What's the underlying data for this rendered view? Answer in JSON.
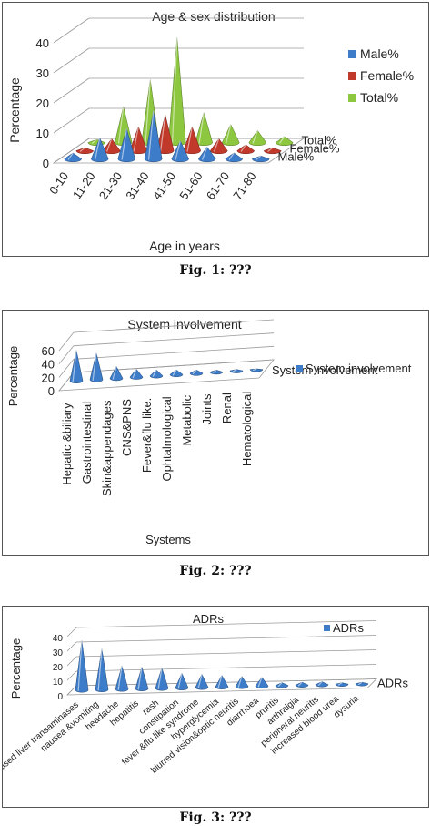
{
  "captions": [
    "Fig. 1: ???",
    "Fig. 2: ???",
    "Fig. 3: ???"
  ],
  "chart_data": [
    {
      "type": "bar",
      "style": "3d-cone",
      "title": "Age & sex distribution",
      "xlabel": "Age in years",
      "ylabel": "Percentage",
      "ylim": [
        0,
        40
      ],
      "yticks": [
        "0",
        "10",
        "20",
        "30",
        "40"
      ],
      "grid": true,
      "legend_position": "right",
      "categories": [
        "0-10",
        "11-20",
        "21-30",
        "31-40",
        "41-50",
        "51-60",
        "61-70",
        "71-80"
      ],
      "depth_labels": [
        "Total%",
        "Female%",
        "Male%"
      ],
      "series": [
        {
          "name": "Male%",
          "color": "#3d7cc9",
          "values": [
            2,
            7,
            10,
            16,
            6,
            4,
            2,
            1
          ]
        },
        {
          "name": "Female%",
          "color": "#c0392b",
          "values": [
            1,
            4,
            8,
            12,
            8,
            4,
            2,
            1
          ]
        },
        {
          "name": "Total%",
          "color": "#8dc63f",
          "values": [
            1,
            12,
            21,
            35,
            10,
            6,
            4,
            2
          ]
        }
      ]
    },
    {
      "type": "bar",
      "style": "3d-cone",
      "title": "System involvement",
      "xlabel": "Systems",
      "ylabel": "Percentage",
      "ylim": [
        0,
        60
      ],
      "yticks": [
        "0",
        "20",
        "40",
        "60"
      ],
      "grid": true,
      "legend_position": "right",
      "depth_labels": [
        "System involvement"
      ],
      "categories": [
        "Hepatic &biliary",
        "Gastrointestinal",
        "Skin&appendages",
        "CNS&PNS",
        "Fever&flu like.",
        "Ophtalmological",
        "Metabolic",
        "Joints",
        "Renal",
        "Hematological"
      ],
      "series": [
        {
          "name": "System involvement",
          "color": "#3d7cc9",
          "values": [
            46,
            40,
            18,
            12,
            9,
            7,
            5,
            3,
            2,
            1
          ]
        }
      ]
    },
    {
      "type": "bar",
      "style": "3d-cone",
      "title": "ADRs",
      "xlabel": "",
      "ylabel": "Percentage",
      "ylim": [
        0,
        40
      ],
      "yticks": [
        "0",
        "10",
        "20",
        "30",
        "40"
      ],
      "grid": true,
      "legend_position": "top-right",
      "depth_labels": [
        "ADRs"
      ],
      "categories": [
        "raised liver transaminases",
        "nausea &vomiting",
        "headache",
        "hepatitis",
        "rash",
        "constipation",
        "fever &flu like syndrome",
        "hyperglycemia",
        "blurred vision&optic neuritis",
        "diarrhoea",
        "pruritis",
        "arthralgia",
        "peripheral neuritis",
        "increased blood urea",
        "dysuria"
      ],
      "series": [
        {
          "name": "ADRs",
          "color": "#3d7cc9",
          "values": [
            34,
            28,
            16,
            15,
            14,
            10,
            9,
            8,
            7,
            6,
            2,
            2,
            2,
            1,
            1
          ]
        }
      ]
    }
  ]
}
